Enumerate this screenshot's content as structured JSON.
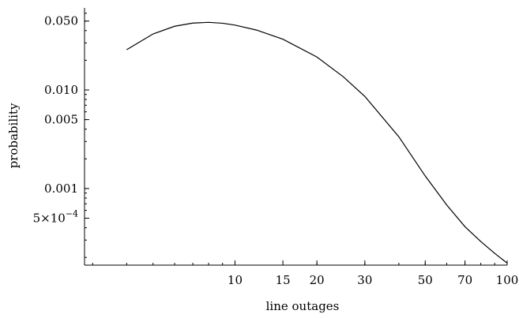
{
  "chart_data": {
    "type": "line",
    "title": "",
    "xlabel": "line outages",
    "ylabel": "probability",
    "x_scale": "log",
    "y_scale": "log",
    "xlim": [
      2.8,
      100
    ],
    "ylim": [
      0.000167,
      0.068
    ],
    "grid": false,
    "legend": "none",
    "x_ticks": [
      {
        "value": 10,
        "label": "10"
      },
      {
        "value": 15,
        "label": "15"
      },
      {
        "value": 20,
        "label": "20"
      },
      {
        "value": 30,
        "label": "30"
      },
      {
        "value": 50,
        "label": "50"
      },
      {
        "value": 70,
        "label": "70"
      },
      {
        "value": 100,
        "label": "100"
      }
    ],
    "y_ticks": [
      {
        "value": 0.0005,
        "label": "5×10",
        "exp": "−4"
      },
      {
        "value": 0.001,
        "label": "0.001",
        "exp": ""
      },
      {
        "value": 0.005,
        "label": "0.005",
        "exp": ""
      },
      {
        "value": 0.01,
        "label": "0.010",
        "exp": ""
      },
      {
        "value": 0.05,
        "label": "0.050",
        "exp": ""
      }
    ],
    "series": [
      {
        "color": "#000000",
        "x": [
          4,
          5,
          6,
          7,
          8,
          9,
          10,
          12,
          15,
          20,
          25,
          30,
          40,
          50,
          60,
          70,
          80,
          90,
          100
        ],
        "y": [
          0.0256,
          0.037,
          0.0443,
          0.0477,
          0.0485,
          0.0475,
          0.0455,
          0.0405,
          0.0327,
          0.0216,
          0.0136,
          0.0086,
          0.00335,
          0.00134,
          0.00068,
          0.00041,
          0.00029,
          0.00022,
          0.000175
        ]
      }
    ]
  }
}
